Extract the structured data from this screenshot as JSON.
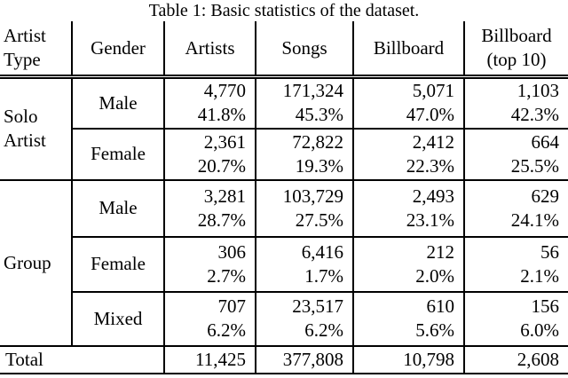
{
  "caption": "Table 1: Basic statistics of the dataset.",
  "columns": {
    "artist_type": "Artist\nType",
    "gender": "Gender",
    "artists": "Artists",
    "songs": "Songs",
    "billboard": "Billboard",
    "billboard_top10": "Billboard\n(top 10)"
  },
  "groups": [
    {
      "label": "Solo\nArtist",
      "rows": [
        {
          "gender": "Male",
          "artists": {
            "count": "4,770",
            "pct": "41.8%"
          },
          "songs": {
            "count": "171,324",
            "pct": "45.3%"
          },
          "billboard": {
            "count": "5,071",
            "pct": "47.0%"
          },
          "billboard_top10": {
            "count": "1,103",
            "pct": "42.3%"
          }
        },
        {
          "gender": "Female",
          "artists": {
            "count": "2,361",
            "pct": "20.7%"
          },
          "songs": {
            "count": "72,822",
            "pct": "19.3%"
          },
          "billboard": {
            "count": "2,412",
            "pct": "22.3%"
          },
          "billboard_top10": {
            "count": "664",
            "pct": "25.5%"
          }
        }
      ]
    },
    {
      "label": "Group",
      "rows": [
        {
          "gender": "Male",
          "artists": {
            "count": "3,281",
            "pct": "28.7%"
          },
          "songs": {
            "count": "103,729",
            "pct": "27.5%"
          },
          "billboard": {
            "count": "2,493",
            "pct": "23.1%"
          },
          "billboard_top10": {
            "count": "629",
            "pct": "24.1%"
          }
        },
        {
          "gender": "Female",
          "artists": {
            "count": "306",
            "pct": "2.7%"
          },
          "songs": {
            "count": "6,416",
            "pct": "1.7%"
          },
          "billboard": {
            "count": "212",
            "pct": "2.0%"
          },
          "billboard_top10": {
            "count": "56",
            "pct": "2.1%"
          }
        },
        {
          "gender": "Mixed",
          "artists": {
            "count": "707",
            "pct": "6.2%"
          },
          "songs": {
            "count": "23,517",
            "pct": "6.2%"
          },
          "billboard": {
            "count": "610",
            "pct": "5.6%"
          },
          "billboard_top10": {
            "count": "156",
            "pct": "6.0%"
          }
        }
      ]
    }
  ],
  "total": {
    "label": "Total",
    "artists": "11,425",
    "songs": "377,808",
    "billboard": "10,798",
    "billboard_top10": "2,608"
  },
  "colors": {
    "text": "#000000",
    "rule": "#000000",
    "background": "#ffffff"
  }
}
